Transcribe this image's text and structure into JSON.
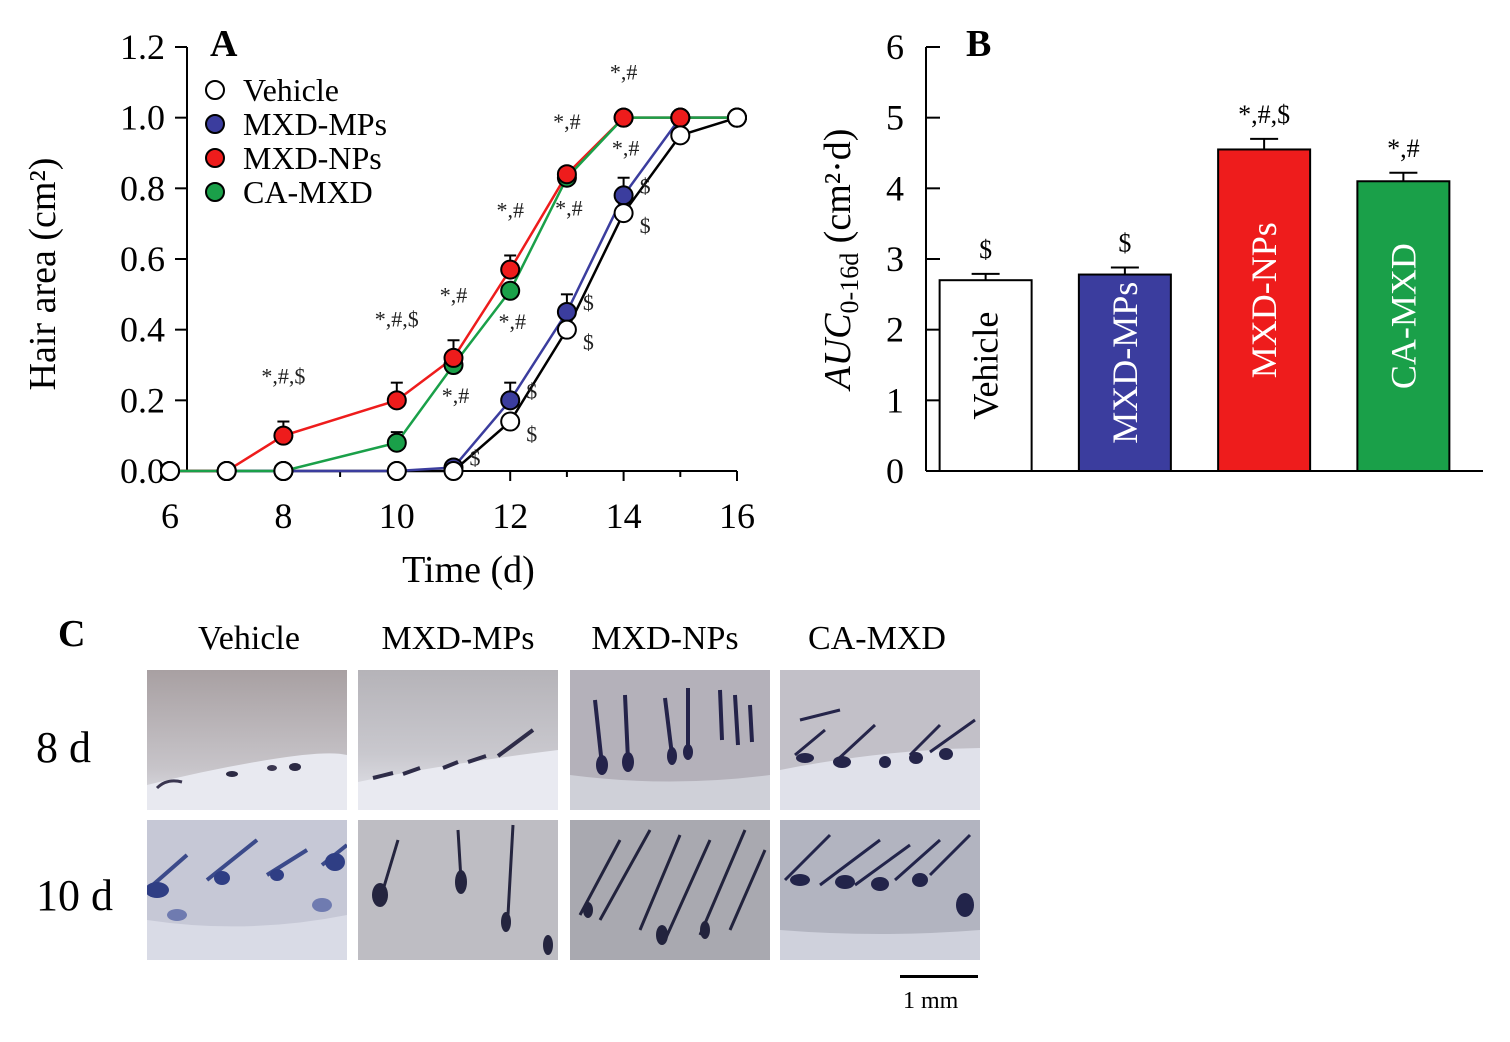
{
  "panels": {
    "a": "A",
    "b": "B",
    "c": "C"
  },
  "chart_data": [
    {
      "type": "line",
      "title": "",
      "xlabel": "Time (d)",
      "ylabel": "Hair area (cm²)",
      "xlim": [
        6,
        16
      ],
      "ylim": [
        0,
        1.2
      ],
      "xticks": [
        "6",
        "8",
        "10",
        "12",
        "14",
        "16"
      ],
      "yticks": [
        "0.0",
        "0.2",
        "0.4",
        "0.6",
        "0.8",
        "1.0",
        "1.2"
      ],
      "series": [
        {
          "name": "Vehicle",
          "color": "#ffffff",
          "x": [
            6,
            7,
            8,
            10,
            11,
            12,
            13,
            14,
            15,
            16
          ],
          "y": [
            0,
            0,
            0,
            0,
            0,
            0.14,
            0.4,
            0.73,
            0.95,
            1.0
          ],
          "err": [
            0,
            0,
            0,
            0,
            0,
            0.02,
            0.03,
            0.03,
            0.02,
            0
          ],
          "annot": [
            "",
            "",
            "",
            "",
            "",
            "$",
            "$",
            "$",
            "",
            ""
          ]
        },
        {
          "name": "MXD-MPs",
          "color": "#3b3d9e",
          "x": [
            6,
            7,
            8,
            10,
            11,
            12,
            13,
            14,
            15,
            16
          ],
          "y": [
            0,
            0,
            0,
            0,
            0.01,
            0.2,
            0.45,
            0.78,
            1.0,
            1.0
          ],
          "err": [
            0,
            0,
            0,
            0,
            0.02,
            0.05,
            0.05,
            0.05,
            0,
            0
          ],
          "annot": [
            "",
            "",
            "",
            "",
            "$",
            "$",
            "$",
            "$",
            "",
            ""
          ]
        },
        {
          "name": "MXD-NPs",
          "color": "#ee1c1c",
          "x": [
            6,
            7,
            8,
            10,
            11,
            12,
            13,
            14,
            15,
            16
          ],
          "y": [
            0,
            0,
            0.1,
            0.2,
            0.32,
            0.57,
            0.84,
            1.0,
            1.0,
            1.0
          ],
          "err": [
            0,
            0,
            0.04,
            0.05,
            0.05,
            0.04,
            0.02,
            0,
            0,
            0
          ],
          "annot": [
            "",
            "",
            "*,#,$",
            "*,#,$",
            "*,#",
            "*,#",
            "*,#",
            "*,#",
            "",
            ""
          ]
        },
        {
          "name": "CA-MXD",
          "color": "#1aa049",
          "x": [
            6,
            7,
            8,
            10,
            11,
            12,
            13,
            14,
            15,
            16
          ],
          "y": [
            0,
            0,
            0,
            0.08,
            0.3,
            0.51,
            0.83,
            1.0,
            1.0,
            1.0
          ],
          "err": [
            0,
            0,
            0,
            0.03,
            0,
            0,
            0,
            0,
            0,
            0
          ],
          "annot": [
            "",
            "",
            "",
            "",
            "*,#",
            "*,#",
            "*,#",
            "*,#",
            "",
            ""
          ]
        }
      ]
    },
    {
      "type": "bar",
      "title": "",
      "xlabel": "",
      "ylabel_main": "AUC",
      "ylabel_sub": "0-16d",
      "ylabel_units": "(cm²·d)",
      "ylim": [
        0,
        6
      ],
      "yticks": [
        "0",
        "1",
        "2",
        "3",
        "4",
        "5",
        "6"
      ],
      "categories": [
        "Vehicle",
        "MXD-MPs",
        "MXD-NPs",
        "CA-MXD"
      ],
      "values": [
        2.7,
        2.78,
        4.55,
        4.1
      ],
      "errors": [
        0.09,
        0.1,
        0.15,
        0.12
      ],
      "colors": [
        "#ffffff",
        "#3b3d9e",
        "#ee1c1c",
        "#1aa049"
      ],
      "label_colors": [
        "#000000",
        "#ffffff",
        "#ffffff",
        "#ffffff"
      ],
      "annotations": [
        "$",
        "$",
        "*,#,$",
        "*,#"
      ]
    }
  ],
  "images": {
    "columns": [
      "Vehicle",
      "MXD-MPs",
      "MXD-NPs",
      "CA-MXD"
    ],
    "rows": [
      "8 d",
      "10 d"
    ],
    "scale_bar": "1 mm"
  }
}
